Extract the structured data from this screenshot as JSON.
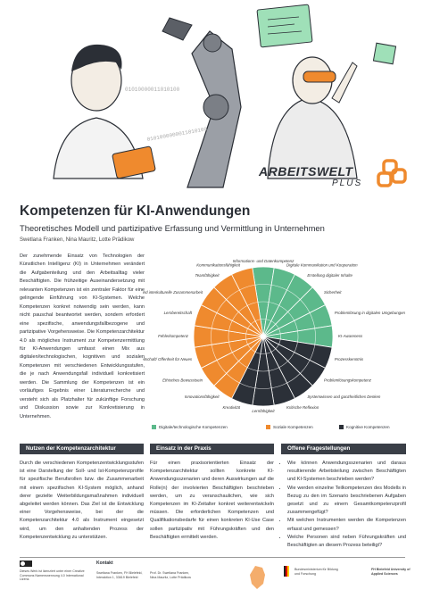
{
  "header": {
    "binary": [
      "01010000011010100",
      "0101000000011010100"
    ],
    "brand": "ARBEITSWELT",
    "brand_sub": "PLUS"
  },
  "title": "Kompetenzen für KI-Anwendungen",
  "subtitle": "Theoretisches Modell und partizipative Erfassung und Vermittlung in Unternehmen",
  "authors": "Swetlana Franken, Nina Mauritz, Lotte Prädikow",
  "intro": "Der zunehmende Einsatz von Technologien der Künstlichen Intelligenz (KI) in Unternehmen verändert die Aufgabenteilung und den Arbeitsalltag vieler Beschäftigten. Die frühzeitige Auseinandersetzung mit relevanten Kompetenzen ist ein zentraler Faktor für eine gelingende Einführung von KI-Systemen. Welche Kompetenzen konkret notwendig sein werden, kann nicht pauschal beantwortet werden, sondern erfordert eine spezifische, anwendungsfallbezogene und partizipative Vorgehensweise. Die Kompetenzarchitektur 4.0 als mögliches Instrument zur Kompetenzermittlung für KI-Anwendungen umfasst einen Mix aus digitalen/technologischen, kognitiven und sozialen Kompetenzen mit verschiedenen Entwicklungsstufen, die je nach Anwendungsfall individuell konkretisiert werden. Die Sammlung der Kompetenzen ist ein vorläufiges Ergebnis einer Literaturrecherche und versteht sich als Platzhalter für zukünftige Forschung und Diskussion sowie zur Konkretisierung in Unternehmen.",
  "wheel": {
    "groups": [
      {
        "name": "Digitale/technologische Kompetenzen",
        "color": "#5cb98b"
      },
      {
        "name": "Soziale Kompetenzen",
        "color": "#ef8a2e"
      },
      {
        "name": "Kognitive Kompetenzen",
        "color": "#2b3038"
      }
    ],
    "competences": [
      {
        "label": "Informations- und Datenkompetenz",
        "group": 0
      },
      {
        "label": "Digitale Kommunikation und Kooperation",
        "group": 0
      },
      {
        "label": "Erstellung digitaler Inhalte",
        "group": 0
      },
      {
        "label": "Sicherheit",
        "group": 0
      },
      {
        "label": "Problemlösung in digitalen Umgebungen",
        "group": 0
      },
      {
        "label": "KI-Awareness",
        "group": 0
      },
      {
        "label": "Prozesskenntnis",
        "group": 2
      },
      {
        "label": "Problemlösungskompetenz",
        "group": 2
      },
      {
        "label": "Systemwissen und ganzheitliches Denken",
        "group": 2
      },
      {
        "label": "Kritische Reflexion",
        "group": 2
      },
      {
        "label": "Lernfähigkeit",
        "group": 2
      },
      {
        "label": "Kreativität",
        "group": 2
      },
      {
        "label": "Innovationsfähigkeit",
        "group": 1
      },
      {
        "label": "Ethisches Bewusstsein",
        "group": 1
      },
      {
        "label": "Veränderungsbereitschaft/ Offenheit für Neues",
        "group": 1
      },
      {
        "label": "Fehlerkompetenz",
        "group": 1
      },
      {
        "label": "Lernbereitschaft",
        "group": 1
      },
      {
        "label": "Interdisziplinäre und interkulturelle Zusammenarbeit",
        "group": 1
      },
      {
        "label": "Teamfähigkeit",
        "group": 1
      },
      {
        "label": "Kommunikationsfähigkeit",
        "group": 1
      }
    ]
  },
  "sections": [
    {
      "title": "Nutzen der Kompetenzarchitektur",
      "body": "Durch die verschiedenen Kompetenzentwicklungsstufen ist eine Darstellung der Soll- und Ist-Kompetenzprofile für spezifische Berufsrollen bzw. die Zusammenarbeit mit einem spezifischen KI-System möglich, anhand derer gezielte Weiterbildungsmaßnahmen individuell abgeleitet werden können. Das Ziel ist die Entwicklung einer Vorgehensweise, bei der die Kompetenzarchitektur 4.0 als Instrument eingesetzt wird, um den anhaltenden Prozess der Kompetenzentwicklung zu unterstützen."
    },
    {
      "title": "Einsatz in der Praxis",
      "body": "Für einen praxisorientierten Einsatz der Kompetenzarchitektur sollten konkrete KI-Anwendungsszenarien und deren Auswirkungen auf die Rolle(n) der involvierten Beschäftigten beschrieben werden, um zu veranschaulichen, wie sich Kompetenzen im KI-Zeitalter konkret weiterentwickeln müssen. Die erforderlichen Kompetenzen und Qualifikationsbedarfe für einen konkreten KI-Use Case sollen partizipativ mit Führungskräften und den Beschäftigten ermittelt werden."
    },
    {
      "title": "Offene Fragestellungen",
      "bullets": [
        "Wie können Anwendungsszenarien und daraus resultierende Arbeitsteilung zwischen Beschäftigten und KI-Systemen beschrieben werden?",
        "Wie werden einzelne Teilkompetenzen des Modells in Bezug zu den im Szenario beschriebenen Aufgaben gesetzt und zu einem Gesamtkompetenzprofil zusammengefügt?",
        "Mit welchen Instrumenten werden die Kompetenzen erfasst und gemessen?",
        "Welche Personen sind neben Führungskräften und Beschäftigten an diesem Prozess beteiligt?"
      ]
    }
  ],
  "footer": {
    "license": "Dieses Werk ist lizenziert unter einer Creative Commons Namensnennung 4.0 International Lizenz.",
    "contact_title": "Kontakt",
    "contact_1": "Swetlana Franken, FH Bielefeld, Interaktion 1, 33619 Bielefeld",
    "contact_2": "Prof. Dr. Swetlana Franken, Nina Mauritz, Lotte Prädikow",
    "funder": "Bundesministerium für Bildung und Forschung",
    "university": "FH Bielefeld University of Applied Sciences"
  }
}
